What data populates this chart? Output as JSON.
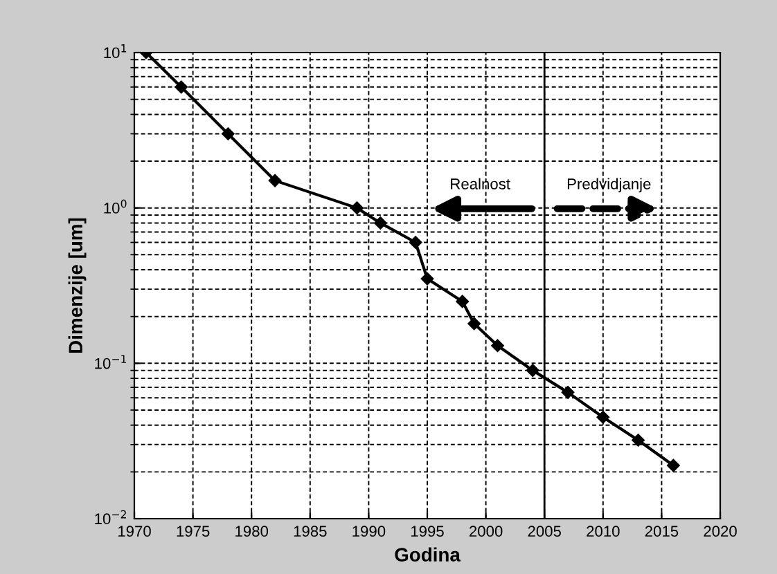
{
  "chart_data": {
    "type": "line",
    "xlabel": "Godina",
    "ylabel": "Dimenzije [um]",
    "log": "y",
    "x": [
      1971,
      1974,
      1978,
      1982,
      1989,
      1991,
      1994,
      1995,
      1998,
      1999,
      2001,
      2004,
      2007,
      2010,
      2013,
      2016
    ],
    "series": [
      {
        "color": "#000000",
        "values": [
          10,
          6,
          3,
          1.5,
          1.0,
          0.8,
          0.6,
          0.35,
          0.25,
          0.18,
          0.13,
          0.09,
          0.065,
          0.045,
          0.032,
          0.022
        ]
      }
    ],
    "marker": "diamond",
    "line_style": "solid",
    "grid": true,
    "xlim": [
      1970,
      2020
    ],
    "xticks": [
      1970,
      1975,
      1980,
      1985,
      1990,
      1995,
      2000,
      2005,
      2010,
      2015,
      2020
    ],
    "ylim": [
      0.01,
      10
    ],
    "yticks": [
      {
        "value": 0.01,
        "label": "10$^{−2}$"
      },
      {
        "value": 0.1,
        "label": "10$^{−1}$"
      },
      {
        "value": 1,
        "label": "10$^{0}$"
      },
      {
        "value": 10,
        "label": "10$^{1}$"
      }
    ],
    "ref_lines": [
      {
        "axis": "x",
        "value": 2005,
        "color": "#000000",
        "line_style": "solid"
      }
    ],
    "annotations": [
      "Realnost",
      "Predvidjanje"
    ]
  }
}
